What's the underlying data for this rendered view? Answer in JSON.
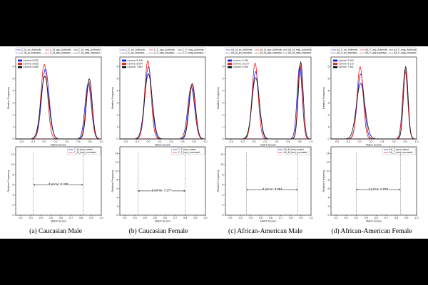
{
  "colors": {
    "blue": "#1f1fe0",
    "red": "#e81c1c",
    "black": "#111111",
    "purple": "#7f2fd0"
  },
  "captions": [
    "(a) Caucasian Male",
    "(b) Caucasian Female",
    "(c) African-American Male",
    "(d) African-American Female"
  ],
  "chart_data": [
    {
      "type": "line",
      "panel": "a",
      "xlabel": "Match Scores",
      "ylabel": "Relative Frequency",
      "xlim": [
        -0.5,
        1.0
      ],
      "xticks": [
        "-0.4",
        "-0.2",
        "0.0",
        "0.2",
        "0.4",
        "0.6",
        "0.8",
        "1.0"
      ],
      "yticks": [
        "0",
        "1",
        "2",
        "3",
        "4",
        "5",
        "6"
      ],
      "legend": [
        "C_M_pn_Authentic",
        "C_M_pn_Impostor",
        "C_M_app_Authentic",
        "C_M_app_Impostor",
        "C_M_mag_Authentic",
        "C_M_mag_Impostor"
      ],
      "dprime": [
        {
          "label": "d-prime: 8.252",
          "color": "#1f1fe0"
        },
        {
          "label": "d-prime: 8.635",
          "color": "#e81c1c"
        },
        {
          "label": "d-prime: 8.658",
          "color": "#111111"
        }
      ],
      "series": [
        {
          "mu": 0.02,
          "sd": 0.065,
          "peak": 5.8,
          "color": "#1f1fe0"
        },
        {
          "mu": 0.77,
          "sd": 0.055,
          "peak": 4.6,
          "color": "#1f1fe0"
        },
        {
          "mu": 0.0,
          "sd": 0.058,
          "peak": 6.2,
          "color": "#e81c1c"
        },
        {
          "mu": 0.78,
          "sd": 0.05,
          "peak": 4.8,
          "color": "#e81c1c"
        },
        {
          "mu": 0.01,
          "sd": 0.07,
          "peak": 5.2,
          "color": "#111111"
        },
        {
          "mu": 0.79,
          "sd": 0.05,
          "peak": 5.0,
          "color": "#111111"
        }
      ]
    },
    {
      "type": "line",
      "panel": "b",
      "xlabel": "Match Scores",
      "ylabel": "Relative Frequency",
      "xlim": [
        -0.5,
        1.0
      ],
      "xticks": [
        "-0.4",
        "-0.2",
        "0.0",
        "0.2",
        "0.4",
        "0.6",
        "0.8",
        "1.0"
      ],
      "yticks": [
        "0",
        "1",
        "2",
        "3",
        "4",
        "5",
        "6"
      ],
      "legend": [
        "C_F_pn_Authentic",
        "C_F_pn_Impostor",
        "C_F_app_Authentic",
        "C_F_app_Impostor",
        "C_F_mag_Authentic",
        "C_F_mag_Impostor"
      ],
      "dprime": [
        {
          "label": "d-prime: 8.348",
          "color": "#1f1fe0"
        },
        {
          "label": "d-prime: 8.094",
          "color": "#e81c1c"
        },
        {
          "label": "d-prime: 7.852",
          "color": "#111111"
        }
      ],
      "series": [
        {
          "mu": 0.0,
          "sd": 0.06,
          "peak": 6.0,
          "color": "#1f1fe0"
        },
        {
          "mu": 0.75,
          "sd": 0.06,
          "peak": 4.3,
          "color": "#1f1fe0"
        },
        {
          "mu": -0.01,
          "sd": 0.055,
          "peak": 6.5,
          "color": "#e81c1c"
        },
        {
          "mu": 0.76,
          "sd": 0.055,
          "peak": 4.5,
          "color": "#e81c1c"
        },
        {
          "mu": 0.0,
          "sd": 0.068,
          "peak": 5.4,
          "color": "#111111"
        },
        {
          "mu": 0.77,
          "sd": 0.055,
          "peak": 4.6,
          "color": "#111111"
        }
      ]
    },
    {
      "type": "line",
      "panel": "c",
      "xlabel": "Match Scores",
      "ylabel": "Relative Frequency",
      "xlim": [
        -0.5,
        1.0
      ],
      "xticks": [
        "-0.4",
        "-0.2",
        "0.0",
        "0.2",
        "0.4",
        "0.6",
        "0.8",
        "1.0"
      ],
      "yticks": [
        "0",
        "1",
        "2",
        "3",
        "4",
        "5",
        "6"
      ],
      "legend": [
        "AA_M_pn_Authentic",
        "AA_M_pn_Impostor",
        "AA_M_app_Authentic",
        "AA_M_app_Impostor",
        "AA_M_mag_Authentic",
        "AA_M_mag_Impostor"
      ],
      "dprime": [
        {
          "label": "d-prime: 9.436",
          "color": "#1f1fe0"
        },
        {
          "label": "d-prime: 10.277",
          "color": "#e81c1c"
        },
        {
          "label": "d-prime: 9.456",
          "color": "#111111"
        }
      ],
      "series": [
        {
          "mu": 0.03,
          "sd": 0.06,
          "peak": 5.6,
          "color": "#1f1fe0"
        },
        {
          "mu": 0.8,
          "sd": 0.045,
          "peak": 6.0,
          "color": "#1f1fe0"
        },
        {
          "mu": 0.02,
          "sd": 0.053,
          "peak": 6.3,
          "color": "#e81c1c"
        },
        {
          "mu": 0.81,
          "sd": 0.04,
          "peak": 6.2,
          "color": "#e81c1c"
        },
        {
          "mu": 0.03,
          "sd": 0.065,
          "peak": 5.1,
          "color": "#111111"
        },
        {
          "mu": 0.82,
          "sd": 0.042,
          "peak": 6.4,
          "color": "#111111"
        }
      ]
    },
    {
      "type": "line",
      "panel": "d",
      "xlabel": "Match Scores",
      "ylabel": "Relative Frequency",
      "xlim": [
        -0.5,
        1.0
      ],
      "xticks": [
        "-0.4",
        "-0.2",
        "0.0",
        "0.2",
        "0.4",
        "0.6",
        "0.8",
        "1.0"
      ],
      "yticks": [
        "0",
        "1",
        "2",
        "3",
        "4",
        "5",
        "6"
      ],
      "legend": [
        "AA_F_pn_Authentic",
        "AA_F_pn_Impostor",
        "AA_F_app_Authentic",
        "AA_F_app_Impostor",
        "AA_F_mag_Authentic",
        "AA_F_mag_Impostor"
      ],
      "dprime": [
        {
          "label": "d-prime: 9.402",
          "color": "#1f1fe0"
        },
        {
          "label": "d-prime: 9.173",
          "color": "#e81c1c"
        },
        {
          "label": "d-prime: 7.981",
          "color": "#111111"
        }
      ],
      "series": [
        {
          "mu": 0.02,
          "sd": 0.06,
          "peak": 5.4,
          "color": "#1f1fe0"
        },
        {
          "mu": 0.8,
          "sd": 0.045,
          "peak": 5.6,
          "color": "#1f1fe0"
        },
        {
          "mu": 0.01,
          "sd": 0.053,
          "peak": 6.0,
          "color": "#e81c1c"
        },
        {
          "mu": 0.8,
          "sd": 0.043,
          "peak": 5.8,
          "color": "#e81c1c"
        },
        {
          "mu": 0.02,
          "sd": 0.075,
          "peak": 4.6,
          "color": "#111111"
        },
        {
          "mu": 0.81,
          "sd": 0.04,
          "peak": 6.0,
          "color": "#111111"
        }
      ]
    },
    {
      "type": "line",
      "panel": "a2",
      "xlabel": "Match Scores",
      "ylabel": "Relative Frequency",
      "xlim": [
        0.15,
        1.0
      ],
      "xticks": [
        "0.2",
        "0.3",
        "0.4",
        "0.5",
        "0.6",
        "0.7",
        "0.8",
        "0.9",
        "1.0"
      ],
      "yticks": [
        "0",
        "2",
        "4",
        "6",
        "8",
        "10",
        "12"
      ],
      "legend": [
        "C_M_best_mated",
        "C_M_best_nonmated"
      ],
      "annotation": "d-prime: 8.499",
      "ann_x": [
        0.325,
        0.82
      ],
      "ann_y": 6.0,
      "series": [
        {
          "mu": 0.325,
          "sd": 0.022,
          "peak": 12.8,
          "color": "#e81c1c"
        },
        {
          "mu": 0.82,
          "sd": 0.055,
          "peak": 7.6,
          "color": "#1f1fe0"
        }
      ]
    },
    {
      "type": "line",
      "panel": "b2",
      "xlabel": "Match Scores",
      "ylabel": "Relative Frequency",
      "xlim": [
        0.15,
        1.0
      ],
      "xticks": [
        "0.2",
        "0.3",
        "0.4",
        "0.5",
        "0.6",
        "0.7",
        "0.8",
        "0.9",
        "1.0"
      ],
      "yticks": [
        "0",
        "2",
        "4",
        "6",
        "8",
        "10",
        "12",
        "14"
      ],
      "legend": [
        "C_F_best_mated",
        "C_F_best_nonmated"
      ],
      "annotation": "d-prime: 7.277",
      "ann_x": [
        0.33,
        0.8
      ],
      "ann_y": 5.5,
      "series": [
        {
          "mu": 0.33,
          "sd": 0.022,
          "peak": 13.8,
          "color": "#e81c1c"
        },
        {
          "mu": 0.8,
          "sd": 0.065,
          "peak": 6.8,
          "color": "#1f1fe0"
        }
      ]
    },
    {
      "type": "line",
      "panel": "c2",
      "xlabel": "Match Scores",
      "ylabel": "Relative Frequency",
      "xlim": [
        0.15,
        1.0
      ],
      "xticks": [
        "0.2",
        "0.3",
        "0.4",
        "0.5",
        "0.6",
        "0.7",
        "0.8",
        "0.9",
        "1.0"
      ],
      "yticks": [
        "0",
        "2",
        "4",
        "6",
        "8",
        "10",
        "12"
      ],
      "legend": [
        "AA_M_best_mated",
        "AA_M_best_nonmated"
      ],
      "annotation": "d-prime: 9.984",
      "ann_x": [
        0.36,
        0.87
      ],
      "ann_y": 5.0,
      "series": [
        {
          "mu": 0.36,
          "sd": 0.022,
          "peak": 12.8,
          "color": "#e81c1c"
        },
        {
          "mu": 0.87,
          "sd": 0.04,
          "peak": 8.6,
          "color": "#1f1fe0"
        }
      ]
    },
    {
      "type": "line",
      "panel": "d2",
      "xlabel": "Match Scores",
      "ylabel": "Relative Frequency",
      "xlim": [
        0.15,
        1.0
      ],
      "xticks": [
        "0.2",
        "0.3",
        "0.4",
        "0.5",
        "0.6",
        "0.7",
        "0.8",
        "0.9",
        "1.0"
      ],
      "yticks": [
        "0",
        "2",
        "4",
        "6",
        "8",
        "10",
        "12",
        "14"
      ],
      "legend": [
        "AA_F_best_mated",
        "AA_F_best_nonmated"
      ],
      "annotation": "d-prime: 6.934",
      "ann_x": [
        0.4,
        0.84
      ],
      "ann_y": 5.8,
      "series": [
        {
          "mu": 0.4,
          "sd": 0.022,
          "peak": 13.0,
          "color": "#e81c1c"
        },
        {
          "mu": 0.84,
          "sd": 0.055,
          "peak": 6.8,
          "color": "#1f1fe0"
        }
      ]
    }
  ]
}
